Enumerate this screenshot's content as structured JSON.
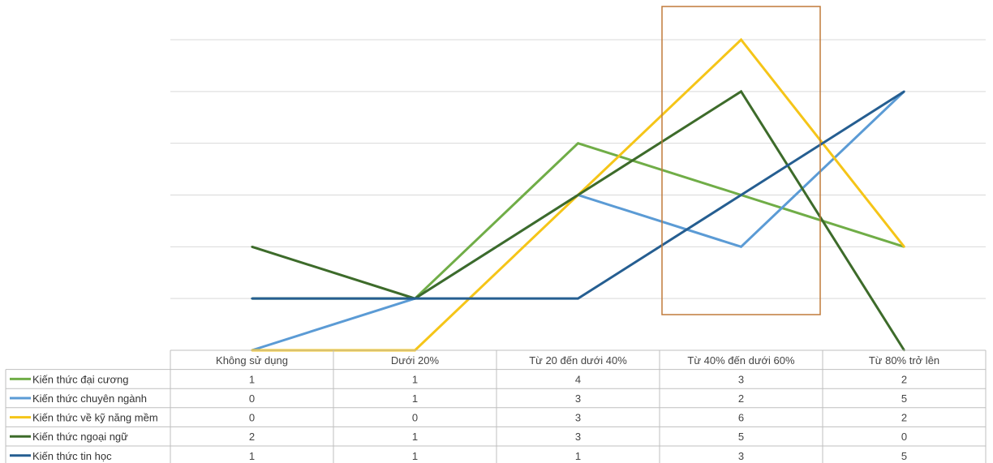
{
  "chart_data": {
    "type": "line",
    "title": "",
    "xlabel": "",
    "ylabel": "",
    "ylim": [
      0,
      6
    ],
    "grid": true,
    "legend_placement": "data-table-left",
    "categories": [
      "Không sử dụng",
      "Dưới 20%",
      "Từ 20 đến dưới 40%",
      "Từ 40% đến dưới 60%",
      "Từ 80% trở lên"
    ],
    "series": [
      {
        "name": "Kiến thức đại cương",
        "color": "#70ad47",
        "values": [
          1,
          1,
          4,
          3,
          2
        ]
      },
      {
        "name": "Kiến thức chuyên ngành",
        "color": "#5b9bd5",
        "values": [
          0,
          1,
          3,
          2,
          5
        ]
      },
      {
        "name": "Kiến thức về kỹ năng mềm",
        "color": "#f5c518",
        "values": [
          0,
          0,
          3,
          6,
          2
        ]
      },
      {
        "name": "Kiến thức ngoại ngữ",
        "color": "#3d6b2a",
        "values": [
          2,
          1,
          3,
          5,
          0
        ]
      },
      {
        "name": "Kiến thức tin học",
        "color": "#255e91",
        "values": [
          1,
          1,
          1,
          3,
          5
        ]
      }
    ],
    "highlight": {
      "category_index": 3,
      "color": "#c07a3a"
    }
  }
}
